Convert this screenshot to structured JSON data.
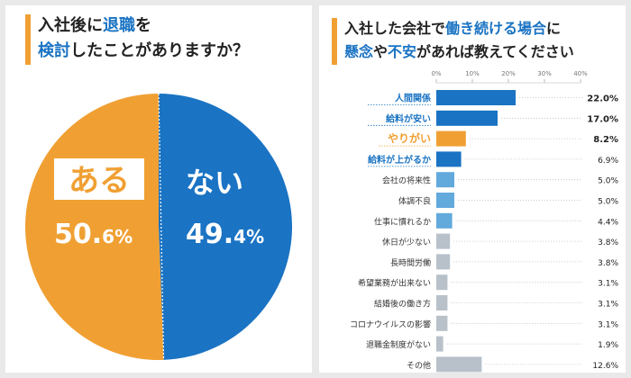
{
  "left": {
    "title_line1_a": "入社後",
    "title_line1_b": "に",
    "title_line1_c": "退職",
    "title_line1_d": "を",
    "title_line2_a": "検討",
    "title_line2_b": "したことがありますか？"
  },
  "right": {
    "title_line1_a": "入社した会社",
    "title_line1_b": "で",
    "title_line1_c": "働き続ける場合",
    "title_line1_d": "に",
    "title_line2_a": "懸念",
    "title_line2_b": "や",
    "title_line2_c": "不安",
    "title_line2_d": "があれば教えてください"
  },
  "colors": {
    "blue": "#1a73c3",
    "orange": "#f0a033",
    "gray": "#b8c1ca",
    "light_blue": "#62a9dc"
  },
  "chart_data": [
    {
      "type": "pie",
      "slices": [
        {
          "label": "ない",
          "value": 49.4,
          "value_main": "49.",
          "value_sub": "4%",
          "color": "#1a73c3"
        },
        {
          "label": "ある",
          "value": 50.6,
          "value_main": "50.",
          "value_sub": "6%",
          "color": "#f0a033"
        }
      ]
    },
    {
      "type": "bar",
      "orientation": "horizontal",
      "xlim": [
        0,
        45
      ],
      "ticks": [
        0,
        10,
        20,
        30,
        40
      ],
      "tick_labels": [
        "0%",
        "10%",
        "20%",
        "30%",
        "40%"
      ],
      "categories": [
        "人間関係",
        "給料が安い",
        "やりがい",
        "給料が上がるか",
        "会社の将来性",
        "体調不良",
        "仕事に慣れるか",
        "休日が少ない",
        "長時間労働",
        "希望業務が出来ない",
        "結婚後の働き方",
        "コロナウイルスの影響",
        "退職金制度がない",
        "その他"
      ],
      "values": [
        22.0,
        17.0,
        8.2,
        6.9,
        5.0,
        5.0,
        4.4,
        3.8,
        3.8,
        3.1,
        3.1,
        3.1,
        1.9,
        12.6
      ],
      "value_labels": [
        "22.0%",
        "17.0%",
        "8.2%",
        "6.9%",
        "5.0%",
        "5.0%",
        "4.4%",
        "3.8%",
        "3.8%",
        "3.1%",
        "3.1%",
        "3.1%",
        "1.9%",
        "12.6%"
      ],
      "bar_colors": [
        "#1a73c3",
        "#1a73c3",
        "#f0a033",
        "#1a73c3",
        "#62a9dc",
        "#62a9dc",
        "#62a9dc",
        "#b8c1ca",
        "#b8c1ca",
        "#b8c1ca",
        "#b8c1ca",
        "#b8c1ca",
        "#b8c1ca",
        "#b8c1ca"
      ],
      "label_styles": [
        "blue",
        "blue",
        "orange",
        "blue",
        "normal",
        "normal",
        "normal",
        "normal",
        "normal",
        "normal",
        "normal",
        "normal",
        "normal",
        "normal"
      ]
    }
  ]
}
